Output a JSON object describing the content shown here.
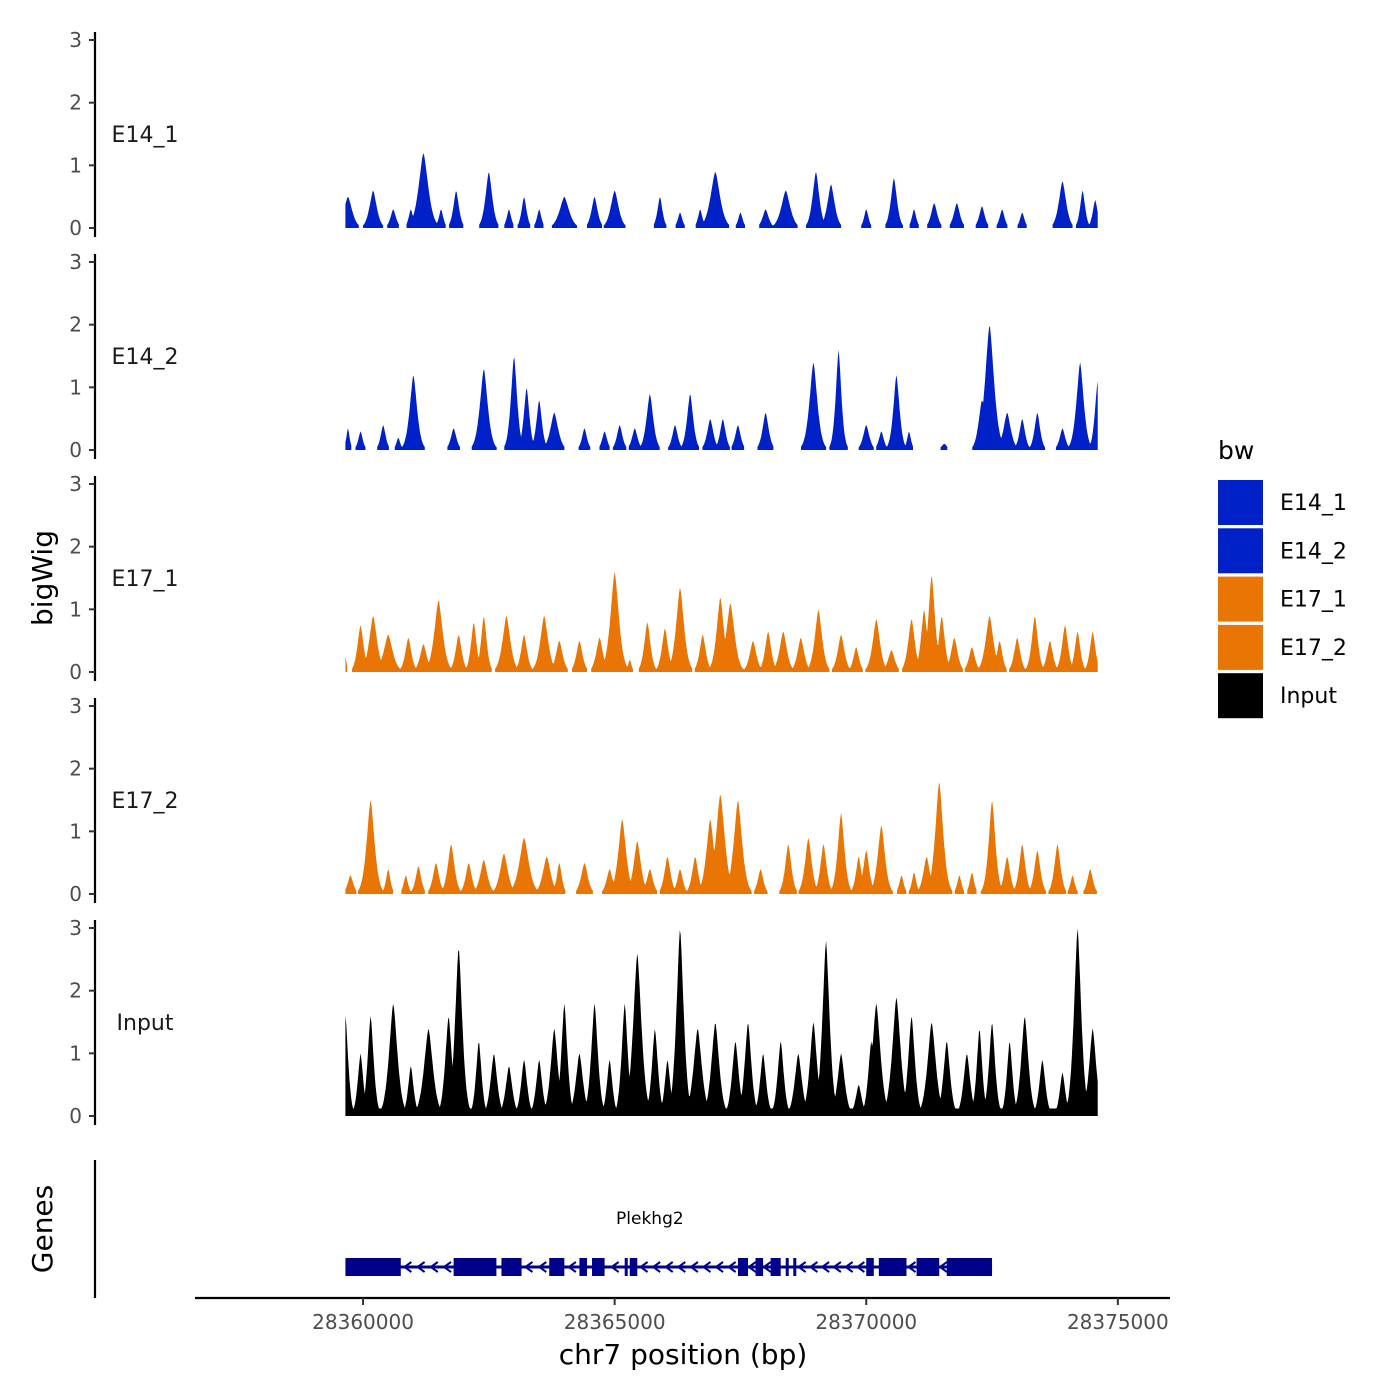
{
  "chart_data": {
    "type": "area",
    "y_axis_title": "bigWig",
    "x_axis_title": "chr7 position (bp)",
    "x_range": [
      28356700,
      28375500
    ],
    "x_ticks": [
      28360000,
      28365000,
      28370000,
      28375000
    ],
    "x_tick_labels": [
      "28360000",
      "28365000",
      "28370000",
      "28375000"
    ],
    "y_range": [
      0,
      3
    ],
    "y_ticks": [
      0,
      1,
      2,
      3
    ],
    "y_tick_labels": [
      "0",
      "1",
      "2",
      "3"
    ],
    "legend": {
      "title": "bw",
      "entries": [
        {
          "label": "E14_1",
          "color": "#0020c8"
        },
        {
          "label": "E14_2",
          "color": "#0020c8"
        },
        {
          "label": "E17_1",
          "color": "#e87504"
        },
        {
          "label": "E17_2",
          "color": "#e87504"
        },
        {
          "label": "Input",
          "color": "#000000"
        }
      ]
    },
    "series": [
      {
        "name": "E14_1",
        "label": "E14_1",
        "color": "#0020c8",
        "peaks": [
          [
            28359700,
            0.5,
            150
          ],
          [
            28360200,
            0.6,
            130
          ],
          [
            28360600,
            0.3,
            100
          ],
          [
            28360950,
            0.3,
            80
          ],
          [
            28361200,
            1.2,
            170
          ],
          [
            28361550,
            0.3,
            80
          ],
          [
            28361850,
            0.6,
            100
          ],
          [
            28362500,
            0.9,
            120
          ],
          [
            28362900,
            0.3,
            80
          ],
          [
            28363200,
            0.5,
            90
          ],
          [
            28363500,
            0.3,
            80
          ],
          [
            28364000,
            0.5,
            170
          ],
          [
            28364600,
            0.5,
            110
          ],
          [
            28365000,
            0.6,
            140
          ],
          [
            28365900,
            0.5,
            90
          ],
          [
            28366300,
            0.25,
            80
          ],
          [
            28366700,
            0.3,
            80
          ],
          [
            28367000,
            0.9,
            170
          ],
          [
            28367500,
            0.25,
            80
          ],
          [
            28368000,
            0.3,
            110
          ],
          [
            28368400,
            0.6,
            160
          ],
          [
            28369000,
            0.9,
            120
          ],
          [
            28369300,
            0.7,
            130
          ],
          [
            28370000,
            0.3,
            80
          ],
          [
            28370550,
            0.8,
            110
          ],
          [
            28370950,
            0.3,
            80
          ],
          [
            28371350,
            0.4,
            110
          ],
          [
            28371800,
            0.4,
            110
          ],
          [
            28372300,
            0.35,
            100
          ],
          [
            28372700,
            0.3,
            90
          ],
          [
            28373100,
            0.25,
            80
          ],
          [
            28373900,
            0.75,
            130
          ],
          [
            28374300,
            0.6,
            90
          ],
          [
            28374550,
            0.45,
            90
          ]
        ]
      },
      {
        "name": "E14_2",
        "label": "E14_2",
        "color": "#0020c8",
        "peaks": [
          [
            28359700,
            0.35,
            60
          ],
          [
            28359950,
            0.3,
            80
          ],
          [
            28360400,
            0.4,
            90
          ],
          [
            28360700,
            0.2,
            70
          ],
          [
            28361000,
            1.2,
            130
          ],
          [
            28361800,
            0.35,
            100
          ],
          [
            28362400,
            1.3,
            140
          ],
          [
            28363000,
            1.5,
            110
          ],
          [
            28363250,
            1.0,
            100
          ],
          [
            28363500,
            0.8,
            100
          ],
          [
            28363800,
            0.6,
            140
          ],
          [
            28364400,
            0.35,
            90
          ],
          [
            28364800,
            0.3,
            90
          ],
          [
            28365100,
            0.4,
            100
          ],
          [
            28365400,
            0.35,
            100
          ],
          [
            28365700,
            0.9,
            120
          ],
          [
            28366200,
            0.4,
            100
          ],
          [
            28366500,
            0.9,
            110
          ],
          [
            28366900,
            0.5,
            110
          ],
          [
            28367150,
            0.5,
            100
          ],
          [
            28367450,
            0.4,
            100
          ],
          [
            28368000,
            0.6,
            110
          ],
          [
            28368950,
            1.4,
            140
          ],
          [
            28369450,
            1.6,
            100
          ],
          [
            28370000,
            0.4,
            110
          ],
          [
            28370300,
            0.3,
            90
          ],
          [
            28370600,
            1.2,
            110
          ],
          [
            28370850,
            0.3,
            70
          ],
          [
            28371550,
            0.1,
            100
          ],
          [
            28372300,
            0.8,
            120
          ],
          [
            28372450,
            2.0,
            160
          ],
          [
            28372800,
            0.6,
            130
          ],
          [
            28373100,
            0.5,
            100
          ],
          [
            28373400,
            0.6,
            100
          ],
          [
            28373900,
            0.35,
            100
          ],
          [
            28374250,
            1.4,
            130
          ],
          [
            28374600,
            1.1,
            100
          ]
        ]
      },
      {
        "name": "E17_1",
        "label": "E17_1",
        "color": "#e87504",
        "peaks": [
          [
            28359650,
            0.25,
            40
          ],
          [
            28359950,
            0.75,
            110
          ],
          [
            28360200,
            0.9,
            140
          ],
          [
            28360500,
            0.6,
            160
          ],
          [
            28360900,
            0.55,
            110
          ],
          [
            28361200,
            0.45,
            120
          ],
          [
            28361500,
            1.15,
            150
          ],
          [
            28361900,
            0.6,
            110
          ],
          [
            28362200,
            0.8,
            100
          ],
          [
            28362400,
            0.9,
            100
          ],
          [
            28362850,
            0.9,
            140
          ],
          [
            28363200,
            0.6,
            110
          ],
          [
            28363600,
            0.9,
            140
          ],
          [
            28363900,
            0.5,
            120
          ],
          [
            28364300,
            0.5,
            110
          ],
          [
            28364700,
            0.55,
            120
          ],
          [
            28365000,
            1.6,
            150
          ],
          [
            28365300,
            0.2,
            60
          ],
          [
            28365650,
            0.8,
            110
          ],
          [
            28366000,
            0.7,
            110
          ],
          [
            28366300,
            1.35,
            140
          ],
          [
            28366750,
            0.6,
            110
          ],
          [
            28367100,
            1.2,
            130
          ],
          [
            28367300,
            1.1,
            150
          ],
          [
            28367750,
            0.5,
            120
          ],
          [
            28368050,
            0.65,
            110
          ],
          [
            28368350,
            0.65,
            130
          ],
          [
            28368700,
            0.55,
            120
          ],
          [
            28369050,
            1.0,
            130
          ],
          [
            28369500,
            0.6,
            120
          ],
          [
            28369800,
            0.4,
            100
          ],
          [
            28370200,
            0.85,
            130
          ],
          [
            28370500,
            0.35,
            120
          ],
          [
            28370900,
            0.85,
            120
          ],
          [
            28371150,
            1.0,
            110
          ],
          [
            28371300,
            1.55,
            120
          ],
          [
            28371500,
            0.9,
            110
          ],
          [
            28371750,
            0.55,
            120
          ],
          [
            28372100,
            0.4,
            110
          ],
          [
            28372450,
            0.9,
            140
          ],
          [
            28372650,
            0.5,
            100
          ],
          [
            28373000,
            0.55,
            110
          ],
          [
            28373350,
            0.9,
            110
          ],
          [
            28373650,
            0.5,
            110
          ],
          [
            28373950,
            0.75,
            110
          ],
          [
            28374200,
            0.65,
            100
          ],
          [
            28374500,
            0.65,
            100
          ]
        ]
      },
      {
        "name": "E17_2",
        "label": "E17_2",
        "color": "#e87504",
        "peaks": [
          [
            28359750,
            0.3,
            100
          ],
          [
            28360150,
            1.5,
            140
          ],
          [
            28360500,
            0.4,
            80
          ],
          [
            28360850,
            0.3,
            80
          ],
          [
            28361100,
            0.45,
            100
          ],
          [
            28361450,
            0.5,
            110
          ],
          [
            28361750,
            0.8,
            120
          ],
          [
            28362100,
            0.5,
            110
          ],
          [
            28362400,
            0.55,
            130
          ],
          [
            28362800,
            0.65,
            140
          ],
          [
            28363200,
            0.9,
            170
          ],
          [
            28363650,
            0.6,
            140
          ],
          [
            28363900,
            0.5,
            90
          ],
          [
            28364400,
            0.5,
            120
          ],
          [
            28364900,
            0.4,
            110
          ],
          [
            28365150,
            1.2,
            140
          ],
          [
            28365450,
            0.85,
            130
          ],
          [
            28365700,
            0.4,
            110
          ],
          [
            28366050,
            0.6,
            110
          ],
          [
            28366300,
            0.4,
            100
          ],
          [
            28366600,
            0.6,
            110
          ],
          [
            28366900,
            1.2,
            140
          ],
          [
            28367100,
            1.6,
            160
          ],
          [
            28367450,
            1.5,
            150
          ],
          [
            28367900,
            0.4,
            100
          ],
          [
            28368450,
            0.8,
            110
          ],
          [
            28368850,
            0.9,
            120
          ],
          [
            28369150,
            0.8,
            110
          ],
          [
            28369500,
            1.3,
            120
          ],
          [
            28369850,
            0.6,
            100
          ],
          [
            28370000,
            0.7,
            110
          ],
          [
            28370300,
            1.1,
            130
          ],
          [
            28370700,
            0.3,
            80
          ],
          [
            28370950,
            0.35,
            80
          ],
          [
            28371200,
            0.6,
            120
          ],
          [
            28371450,
            1.8,
            140
          ],
          [
            28371850,
            0.3,
            80
          ],
          [
            28372100,
            0.35,
            80
          ],
          [
            28372500,
            1.5,
            120
          ],
          [
            28372800,
            0.6,
            110
          ],
          [
            28373100,
            0.8,
            110
          ],
          [
            28373400,
            0.7,
            110
          ],
          [
            28373800,
            0.8,
            110
          ],
          [
            28374100,
            0.3,
            80
          ],
          [
            28374450,
            0.4,
            100
          ]
        ]
      },
      {
        "name": "Input",
        "label": "Input",
        "color": "#000000",
        "peaks": [
          [
            28359650,
            1.6,
            100
          ],
          [
            28359950,
            1.0,
            100
          ],
          [
            28360150,
            1.6,
            110
          ],
          [
            28360600,
            1.8,
            150
          ],
          [
            28360950,
            0.8,
            100
          ],
          [
            28361300,
            1.4,
            160
          ],
          [
            28361700,
            1.6,
            120
          ],
          [
            28361900,
            2.7,
            130
          ],
          [
            28362300,
            1.2,
            100
          ],
          [
            28362600,
            1.0,
            120
          ],
          [
            28362900,
            0.8,
            120
          ],
          [
            28363200,
            0.9,
            110
          ],
          [
            28363500,
            0.9,
            110
          ],
          [
            28363800,
            1.4,
            130
          ],
          [
            28364000,
            1.8,
            110
          ],
          [
            28364300,
            1.0,
            130
          ],
          [
            28364600,
            1.8,
            120
          ],
          [
            28364900,
            0.9,
            100
          ],
          [
            28365200,
            1.8,
            110
          ],
          [
            28365450,
            2.6,
            150
          ],
          [
            28365800,
            1.4,
            110
          ],
          [
            28366050,
            0.9,
            100
          ],
          [
            28366300,
            3.0,
            130
          ],
          [
            28366650,
            1.4,
            150
          ],
          [
            28367000,
            1.5,
            140
          ],
          [
            28367400,
            1.2,
            120
          ],
          [
            28367650,
            1.5,
            120
          ],
          [
            28367950,
            1.0,
            110
          ],
          [
            28368300,
            1.2,
            110
          ],
          [
            28368650,
            1.0,
            130
          ],
          [
            28368950,
            1.5,
            130
          ],
          [
            28369200,
            2.8,
            130
          ],
          [
            28369500,
            1.0,
            130
          ],
          [
            28369850,
            0.5,
            110
          ],
          [
            28370100,
            1.2,
            110
          ],
          [
            28370200,
            1.8,
            150
          ],
          [
            28370600,
            1.9,
            150
          ],
          [
            28370900,
            1.6,
            120
          ],
          [
            28371300,
            1.5,
            150
          ],
          [
            28371600,
            1.2,
            120
          ],
          [
            28372000,
            1.0,
            120
          ],
          [
            28372250,
            1.4,
            100
          ],
          [
            28372500,
            1.5,
            110
          ],
          [
            28372850,
            1.2,
            100
          ],
          [
            28373150,
            1.6,
            130
          ],
          [
            28373500,
            0.9,
            110
          ],
          [
            28373900,
            0.7,
            100
          ],
          [
            28374200,
            3.0,
            130
          ],
          [
            28374500,
            1.4,
            130
          ]
        ]
      }
    ],
    "genes_track": {
      "label": "Genes",
      "gene_name": "Plekhg2",
      "start": 28359650,
      "end": 28372500,
      "strand": "-",
      "exons": [
        [
          28359650,
          28360750
        ],
        [
          28361800,
          28362650
        ],
        [
          28362750,
          28363150
        ],
        [
          28363700,
          28364000
        ],
        [
          28364300,
          28364450
        ],
        [
          28364550,
          28364650
        ],
        [
          28364650,
          28364800
        ],
        [
          28365200,
          28365250
        ],
        [
          28365300,
          28365450
        ],
        [
          28367450,
          28367650
        ],
        [
          28367800,
          28367950
        ],
        [
          28368100,
          28368300
        ],
        [
          28368400,
          28368450
        ],
        [
          28368550,
          28368600
        ],
        [
          28370000,
          28370150
        ],
        [
          28370250,
          28370800
        ],
        [
          28371000,
          28371450
        ],
        [
          28371600,
          28372500
        ]
      ]
    }
  }
}
